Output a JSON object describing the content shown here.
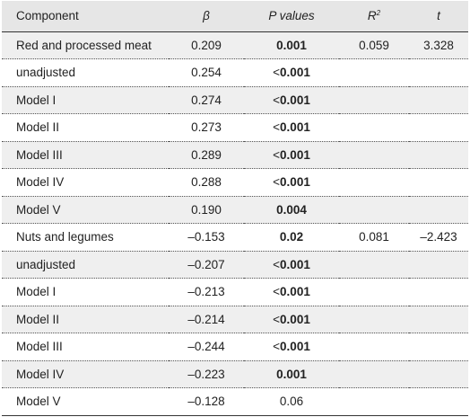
{
  "header": {
    "component": "Component",
    "beta": "β",
    "p_values": "P values",
    "r2_base": "R",
    "r2_sup": "2",
    "t": "t"
  },
  "rows": [
    {
      "component": "Red and processed meat",
      "beta": "0.209",
      "p_prefix": "",
      "p": "0.001",
      "p_bold": true,
      "r2": "0.059",
      "t": "3.328"
    },
    {
      "component": "unadjusted",
      "beta": "0.254",
      "p_prefix": "<",
      "p": "0.001",
      "p_bold": true,
      "r2": "",
      "t": ""
    },
    {
      "component": "Model I",
      "beta": "0.274",
      "p_prefix": "<",
      "p": "0.001",
      "p_bold": true,
      "r2": "",
      "t": ""
    },
    {
      "component": "Model II",
      "beta": "0.273",
      "p_prefix": "<",
      "p": "0.001",
      "p_bold": true,
      "r2": "",
      "t": ""
    },
    {
      "component": "Model III",
      "beta": "0.289",
      "p_prefix": "<",
      "p": "0.001",
      "p_bold": true,
      "r2": "",
      "t": ""
    },
    {
      "component": "Model IV",
      "beta": "0.288",
      "p_prefix": "<",
      "p": "0.001",
      "p_bold": true,
      "r2": "",
      "t": ""
    },
    {
      "component": "Model V",
      "beta": "0.190",
      "p_prefix": "",
      "p": "0.004",
      "p_bold": true,
      "r2": "",
      "t": ""
    },
    {
      "component": "Nuts and legumes",
      "beta": "–0.153",
      "p_prefix": "",
      "p": "0.02",
      "p_bold": true,
      "r2": "0.081",
      "t": "–2.423"
    },
    {
      "component": "unadjusted",
      "beta": "–0.207",
      "p_prefix": "<",
      "p": "0.001",
      "p_bold": true,
      "r2": "",
      "t": ""
    },
    {
      "component": "Model I",
      "beta": "–0.213",
      "p_prefix": "<",
      "p": "0.001",
      "p_bold": true,
      "r2": "",
      "t": ""
    },
    {
      "component": "Model II",
      "beta": "–0.214",
      "p_prefix": "<",
      "p": "0.001",
      "p_bold": true,
      "r2": "",
      "t": ""
    },
    {
      "component": "Model III",
      "beta": "–0.244",
      "p_prefix": "<",
      "p": "0.001",
      "p_bold": true,
      "r2": "",
      "t": ""
    },
    {
      "component": "Model IV",
      "beta": "–0.223",
      "p_prefix": "",
      "p": "0.001",
      "p_bold": true,
      "r2": "",
      "t": ""
    },
    {
      "component": "Model V",
      "beta": "–0.128",
      "p_prefix": "",
      "p": "0.06",
      "p_bold": false,
      "r2": "",
      "t": ""
    }
  ]
}
